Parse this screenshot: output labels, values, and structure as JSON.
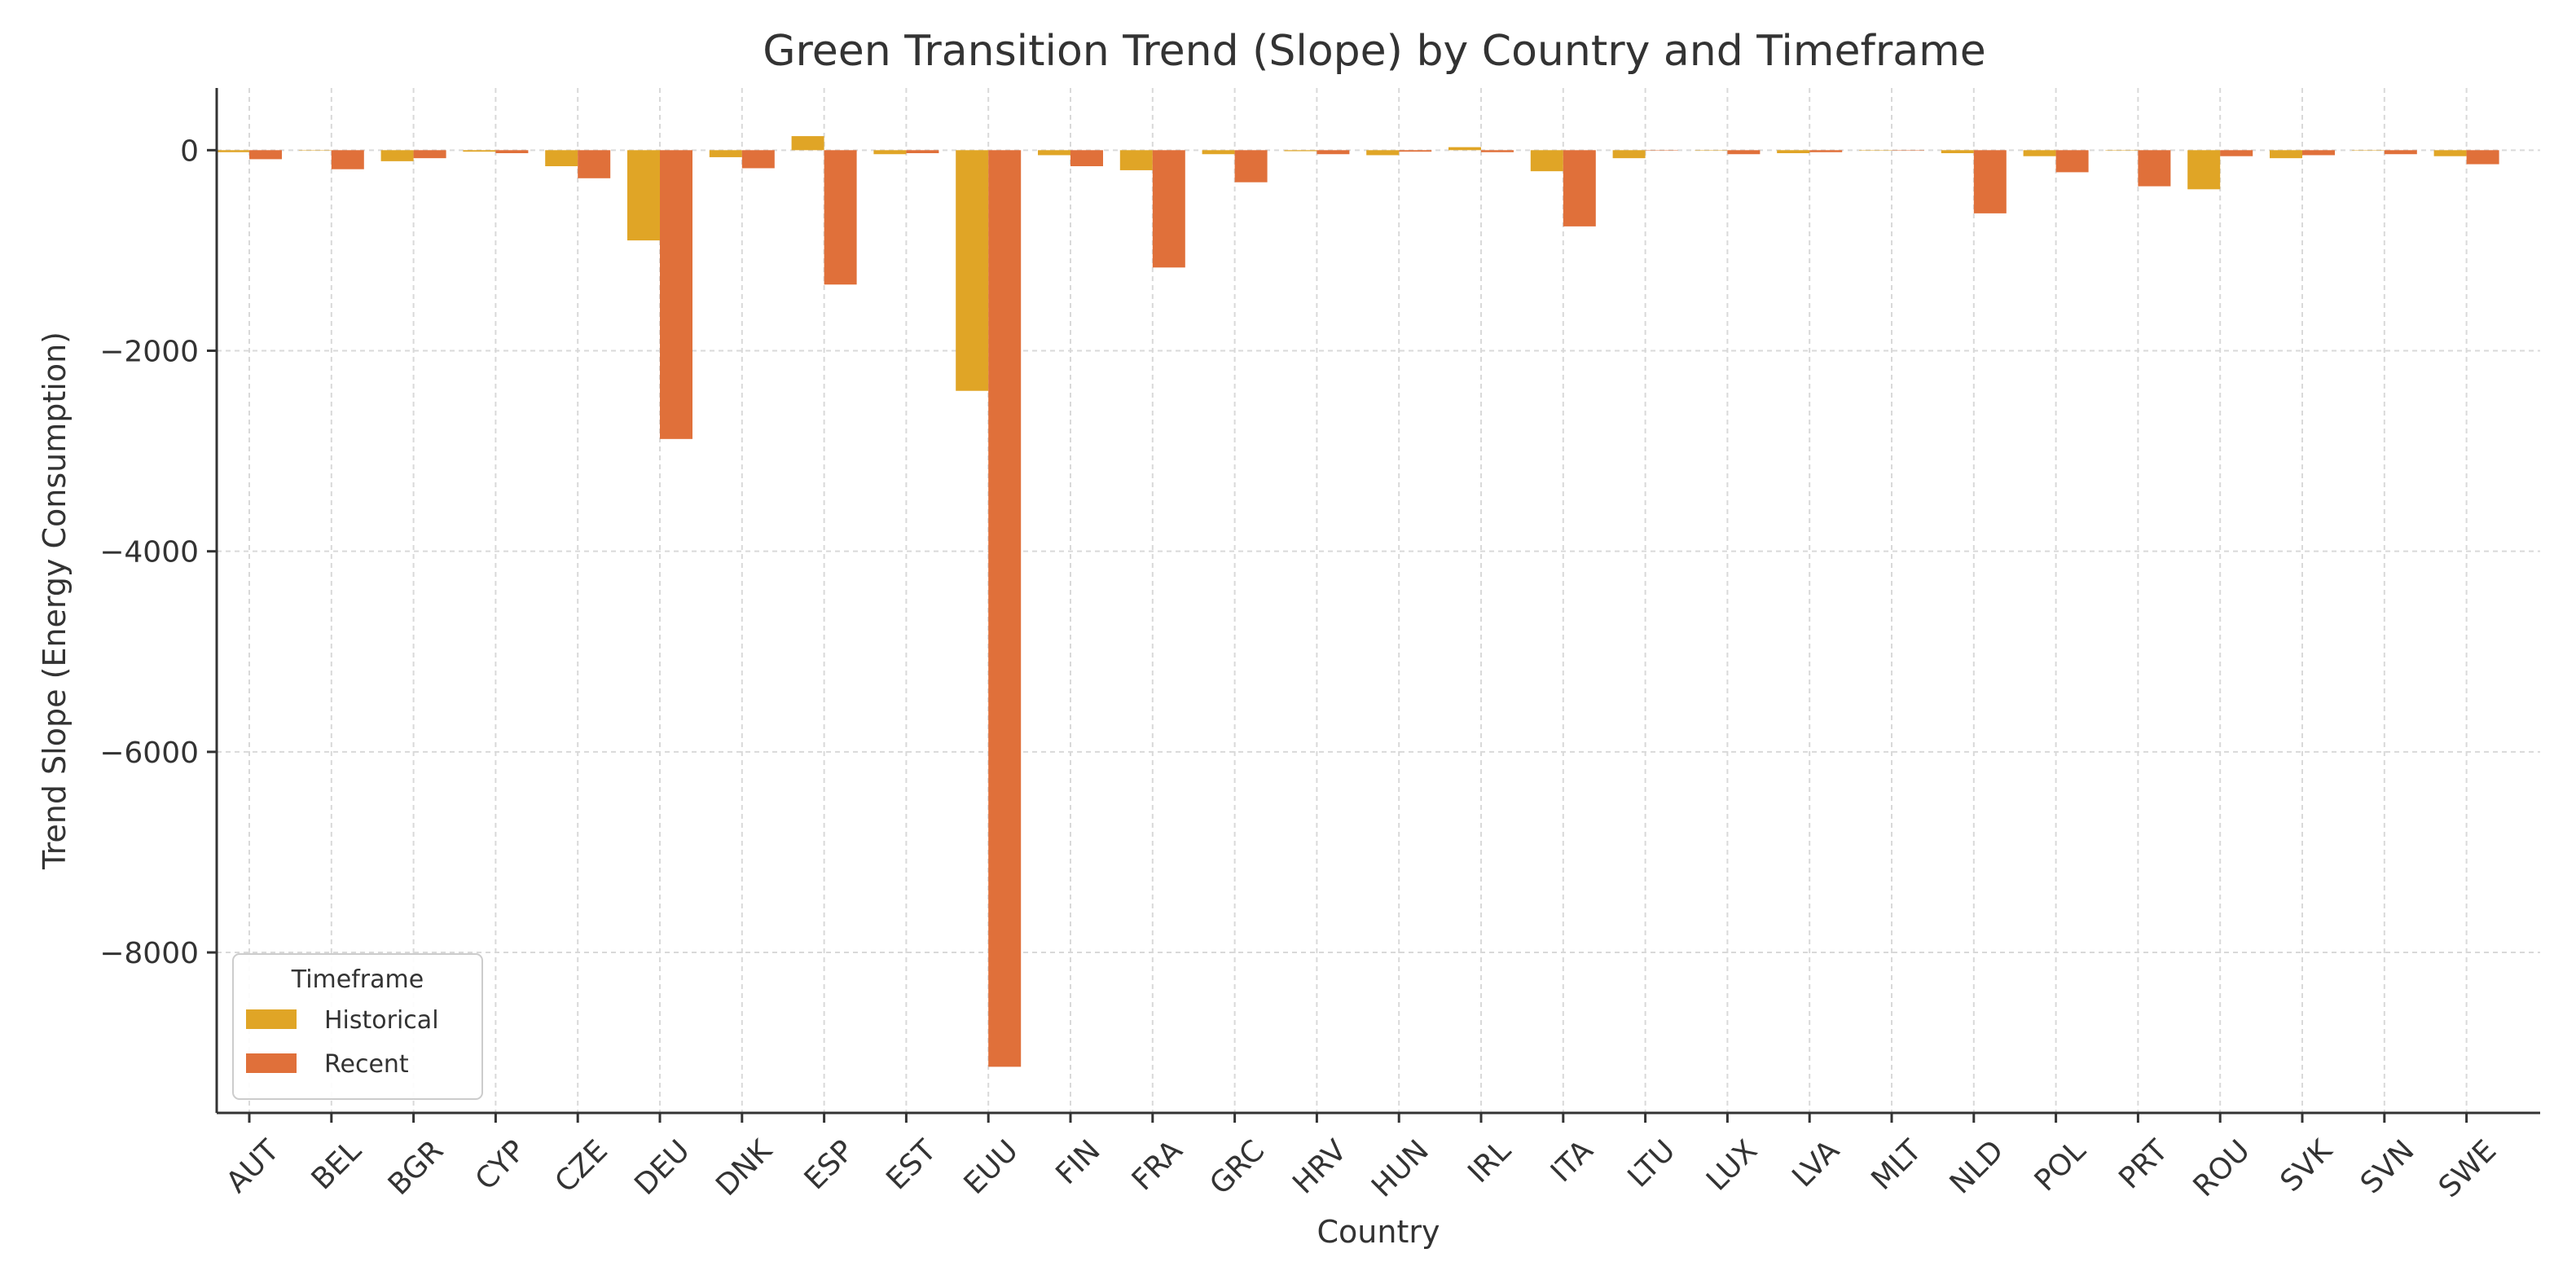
{
  "chart_data": {
    "type": "bar",
    "title": "Green Transition Trend (Slope) by Country and Timeframe",
    "xlabel": "Country",
    "ylabel": "Trend Slope (Energy Consumption)",
    "ylim": [
      -9600,
      620
    ],
    "yticks": [
      0,
      -2000,
      -4000,
      -6000,
      -8000
    ],
    "ytick_labels": [
      "0",
      "−2000",
      "−4000",
      "−6000",
      "−8000"
    ],
    "grid": true,
    "legend": {
      "title": "Timeframe",
      "position": "lower-left"
    },
    "categories": [
      "AUT",
      "BEL",
      "BGR",
      "CYP",
      "CZE",
      "DEU",
      "DNK",
      "ESP",
      "EST",
      "EUU",
      "FIN",
      "FRA",
      "GRC",
      "HRV",
      "HUN",
      "IRL",
      "ITA",
      "LTU",
      "LUX",
      "LVA",
      "MLT",
      "NLD",
      "POL",
      "PRT",
      "ROU",
      "SVK",
      "SVN",
      "SWE"
    ],
    "series": [
      {
        "name": "Historical",
        "color": "#e0a526",
        "values": [
          -20,
          0,
          -110,
          -15,
          -160,
          -900,
          -70,
          140,
          -40,
          -2400,
          -50,
          -200,
          -40,
          -10,
          -50,
          30,
          -210,
          -80,
          0,
          -30,
          0,
          -30,
          -60,
          0,
          -390,
          -80,
          0,
          -60
        ]
      },
      {
        "name": "Recent",
        "color": "#e0703a",
        "values": [
          -90,
          -190,
          -80,
          -30,
          -280,
          -2880,
          -180,
          -1340,
          -30,
          -9140,
          -160,
          -1170,
          -320,
          -40,
          -15,
          -20,
          -760,
          0,
          -40,
          -20,
          0,
          -630,
          -220,
          -360,
          -60,
          -50,
          -40,
          -140
        ]
      }
    ]
  }
}
